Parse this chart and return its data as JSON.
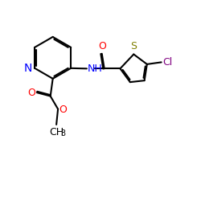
{
  "bg_color": "#ffffff",
  "atom_colors": {
    "N": "#0000ff",
    "O": "#ff0000",
    "S": "#808000",
    "Cl": "#800080",
    "C": "#000000",
    "H": "#000000"
  },
  "bond_color": "#000000",
  "bond_width": 1.5,
  "font_size_atom": 9,
  "font_size_subscript": 7
}
